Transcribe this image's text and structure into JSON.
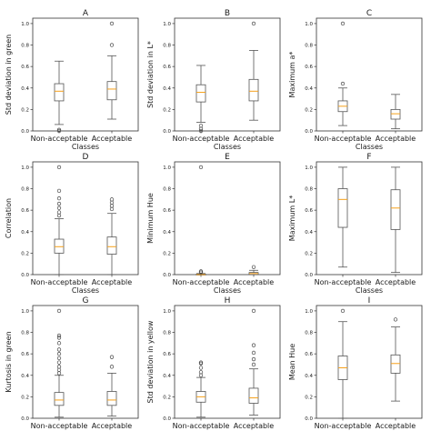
{
  "colors": {
    "box": "#555555",
    "median": "#f5a01a",
    "axis": "#333333",
    "outlier": "#444444"
  },
  "chart_data": [
    {
      "type": "boxplot",
      "title": "A",
      "ylabel": "Std deviation in green",
      "xlabel": "Classes",
      "categories": [
        "Non-acceptable",
        "Acceptable"
      ],
      "ylim": [
        0,
        1.05
      ],
      "yticks": [
        "0.0",
        "0.2",
        "0.4",
        "0.6",
        "0.8",
        "1.0"
      ],
      "boxes": [
        {
          "category": "Non-acceptable",
          "whislo": 0.06,
          "q1": 0.28,
          "med": 0.37,
          "q3": 0.44,
          "whishi": 0.65,
          "fliers": [
            0.0,
            0.01
          ]
        },
        {
          "category": "Acceptable",
          "whislo": 0.11,
          "q1": 0.29,
          "med": 0.39,
          "q3": 0.46,
          "whishi": 0.7,
          "fliers": [
            0.8,
            1.0
          ]
        }
      ]
    },
    {
      "type": "boxplot",
      "title": "B",
      "ylabel": "Std deviation in L*",
      "xlabel": "Classes",
      "categories": [
        "Non-acceptable",
        "Acceptable"
      ],
      "ylim": [
        0,
        1.05
      ],
      "yticks": [
        "0.0",
        "0.2",
        "0.4",
        "0.6",
        "0.8",
        "1.0"
      ],
      "boxes": [
        {
          "category": "Non-acceptable",
          "whislo": 0.08,
          "q1": 0.27,
          "med": 0.36,
          "q3": 0.43,
          "whishi": 0.61,
          "fliers": [
            0.0,
            0.02,
            0.05
          ]
        },
        {
          "category": "Acceptable",
          "whislo": 0.1,
          "q1": 0.28,
          "med": 0.37,
          "q3": 0.48,
          "whishi": 0.75,
          "fliers": [
            1.0
          ]
        }
      ]
    },
    {
      "type": "boxplot",
      "title": "C",
      "ylabel": "Maximum a*",
      "xlabel": "Classes",
      "categories": [
        "Non-acceptable",
        "Acceptable"
      ],
      "ylim": [
        0,
        1.05
      ],
      "yticks": [
        "0.0",
        "0.2",
        "0.4",
        "0.6",
        "0.8",
        "1.0"
      ],
      "boxes": [
        {
          "category": "Non-acceptable",
          "whislo": 0.05,
          "q1": 0.18,
          "med": 0.23,
          "q3": 0.28,
          "whishi": 0.4,
          "fliers": [
            0.44,
            1.0
          ]
        },
        {
          "category": "Acceptable",
          "whislo": 0.02,
          "q1": 0.11,
          "med": 0.16,
          "q3": 0.2,
          "whishi": 0.34,
          "fliers": []
        }
      ]
    },
    {
      "type": "boxplot",
      "title": "D",
      "ylabel": "Correlation",
      "xlabel": "Classes",
      "categories": [
        "Non-acceptable",
        "Acceptable"
      ],
      "ylim": [
        0,
        1.05
      ],
      "yticks": [
        "0.0",
        "0.2",
        "0.4",
        "0.6",
        "0.8",
        "1.0"
      ],
      "boxes": [
        {
          "category": "Non-acceptable",
          "whislo": 0.0,
          "q1": 0.2,
          "med": 0.26,
          "q3": 0.33,
          "whishi": 0.52,
          "fliers": [
            0.55,
            0.58,
            0.62,
            0.66,
            0.71,
            0.78,
            1.0
          ]
        },
        {
          "category": "Acceptable",
          "whislo": 0.0,
          "q1": 0.19,
          "med": 0.26,
          "q3": 0.35,
          "whishi": 0.57,
          "fliers": [
            0.61,
            0.64,
            0.67,
            0.7
          ]
        }
      ]
    },
    {
      "type": "boxplot",
      "title": "E",
      "ylabel": "Minimum Hue",
      "xlabel": "Classes",
      "categories": [
        "Non-acceptable",
        "Acceptable"
      ],
      "ylim": [
        0,
        1.05
      ],
      "yticks": [
        "0.0",
        "0.2",
        "0.4",
        "0.6",
        "0.8",
        "1.0"
      ],
      "boxes": [
        {
          "category": "Non-acceptable",
          "whislo": 0.0,
          "q1": 0.0,
          "med": 0.0,
          "q3": 0.005,
          "whishi": 0.01,
          "fliers": [
            0.02,
            0.03,
            1.0
          ]
        },
        {
          "category": "Acceptable",
          "whislo": 0.0,
          "q1": 0.0,
          "med": 0.01,
          "q3": 0.02,
          "whishi": 0.04,
          "fliers": [
            0.07
          ]
        }
      ]
    },
    {
      "type": "boxplot",
      "title": "F",
      "ylabel": "Maximum L*",
      "xlabel": "Classes",
      "categories": [
        "Non-acceptable",
        "Acceptable"
      ],
      "ylim": [
        0,
        1.05
      ],
      "yticks": [
        "0.0",
        "0.2",
        "0.4",
        "0.6",
        "0.8",
        "1.0"
      ],
      "boxes": [
        {
          "category": "Non-acceptable",
          "whislo": 0.07,
          "q1": 0.44,
          "med": 0.7,
          "q3": 0.8,
          "whishi": 1.0,
          "fliers": []
        },
        {
          "category": "Acceptable",
          "whislo": 0.02,
          "q1": 0.42,
          "med": 0.62,
          "q3": 0.79,
          "whishi": 1.0,
          "fliers": []
        }
      ]
    },
    {
      "type": "boxplot",
      "title": "G",
      "ylabel": "Kurtosis in green",
      "xlabel": "Classes",
      "categories": [
        "Non-acceptable",
        "Acceptable"
      ],
      "ylim": [
        0,
        1.05
      ],
      "yticks": [
        "0.0",
        "0.2",
        "0.4",
        "0.6",
        "0.8",
        "1.0"
      ],
      "boxes": [
        {
          "category": "Non-acceptable",
          "whislo": 0.01,
          "q1": 0.12,
          "med": 0.17,
          "q3": 0.24,
          "whishi": 0.4,
          "fliers": [
            0.42,
            0.45,
            0.48,
            0.52,
            0.56,
            0.6,
            0.64,
            0.7,
            0.75,
            0.77,
            1.0
          ]
        },
        {
          "category": "Acceptable",
          "whislo": 0.02,
          "q1": 0.12,
          "med": 0.17,
          "q3": 0.25,
          "whishi": 0.42,
          "fliers": [
            0.48,
            0.57
          ]
        }
      ]
    },
    {
      "type": "boxplot",
      "title": "H",
      "ylabel": "Std deviation in yellow",
      "xlabel": "Classes",
      "categories": [
        "Non-acceptable",
        "Acceptable"
      ],
      "ylim": [
        0,
        1.05
      ],
      "yticks": [
        "0.0",
        "0.2",
        "0.4",
        "0.6",
        "0.8",
        "1.0"
      ],
      "boxes": [
        {
          "category": "Non-acceptable",
          "whislo": 0.01,
          "q1": 0.15,
          "med": 0.2,
          "q3": 0.25,
          "whishi": 0.38,
          "fliers": [
            0.4,
            0.43,
            0.47,
            0.51,
            0.52
          ]
        },
        {
          "category": "Acceptable",
          "whislo": 0.03,
          "q1": 0.14,
          "med": 0.19,
          "q3": 0.28,
          "whishi": 0.46,
          "fliers": [
            0.5,
            0.55,
            0.61,
            0.68,
            1.0
          ]
        }
      ]
    },
    {
      "type": "boxplot",
      "title": "I",
      "ylabel": "Mean Hue",
      "xlabel": "Classes",
      "categories": [
        "Non-acceptable",
        "Acceptable"
      ],
      "ylim": [
        0,
        1.05
      ],
      "yticks": [
        "0.0",
        "0.2",
        "0.4",
        "0.6",
        "0.8",
        "1.0"
      ],
      "boxes": [
        {
          "category": "Non-acceptable",
          "whislo": 0.0,
          "q1": 0.36,
          "med": 0.47,
          "q3": 0.58,
          "whishi": 0.9,
          "fliers": [
            1.0
          ]
        },
        {
          "category": "Acceptable",
          "whislo": 0.16,
          "q1": 0.42,
          "med": 0.51,
          "q3": 0.59,
          "whishi": 0.85,
          "fliers": [
            0.92
          ]
        }
      ]
    }
  ]
}
